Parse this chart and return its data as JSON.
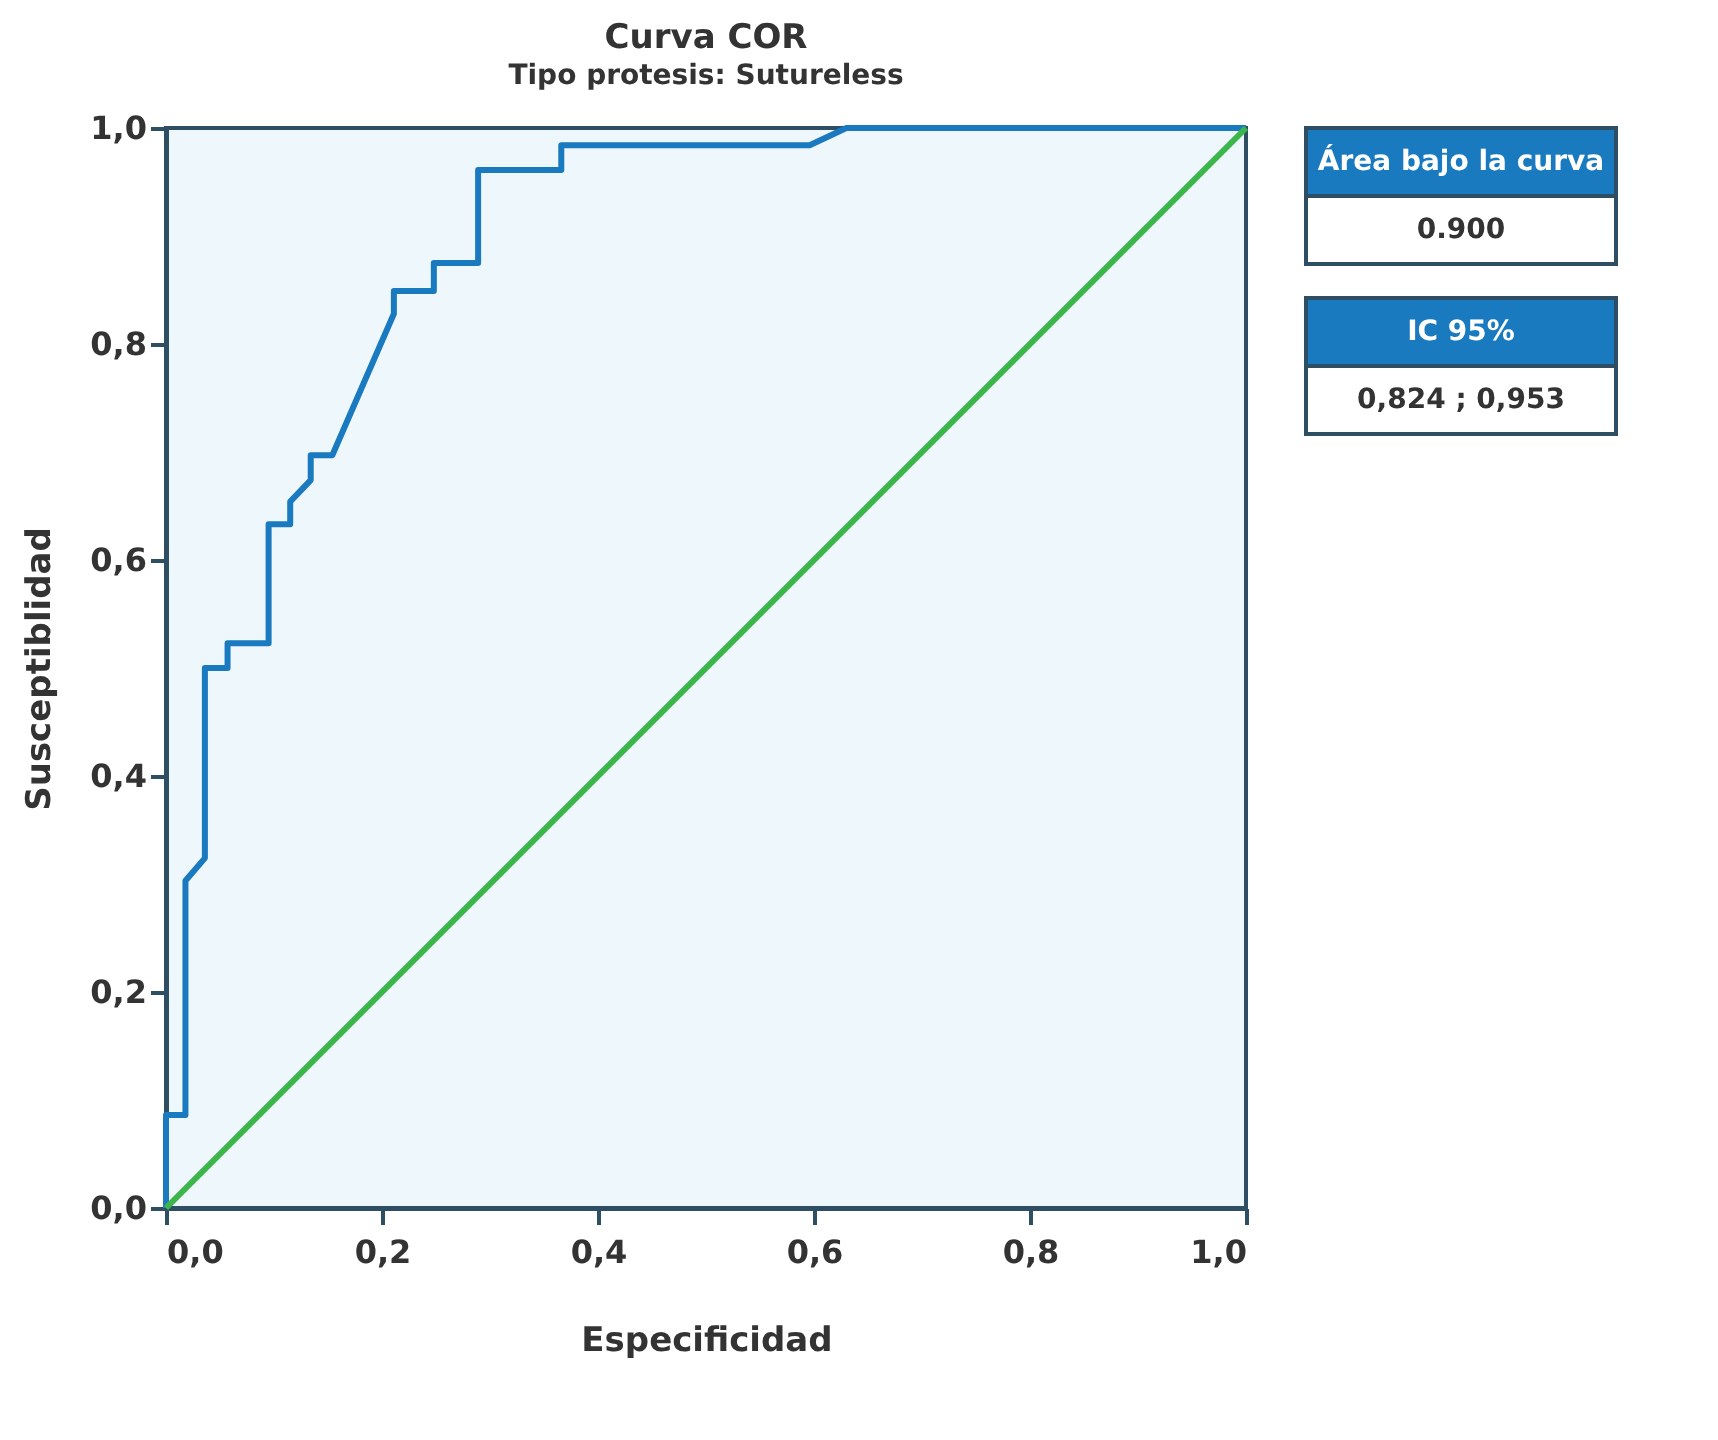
{
  "chart_data": {
    "type": "line",
    "title": "Curva COR",
    "subtitle": "Tipo protesis: Sutureless",
    "xlabel": "Especificidad",
    "ylabel": "Susceptiblidad",
    "xlim": [
      0,
      1
    ],
    "ylim": [
      0,
      1
    ],
    "xticks": [
      {
        "value": 0,
        "label": "0,0"
      },
      {
        "value": 0.2,
        "label": "0,2"
      },
      {
        "value": 0.4,
        "label": "0,4"
      },
      {
        "value": 0.6,
        "label": "0,6"
      },
      {
        "value": 0.8,
        "label": "0,8"
      },
      {
        "value": 1,
        "label": "1,0"
      }
    ],
    "yticks": [
      {
        "value": 0,
        "label": "0,0"
      },
      {
        "value": 0.2,
        "label": "0,2"
      },
      {
        "value": 0.4,
        "label": "0,4"
      },
      {
        "value": 0.6,
        "label": "0,6"
      },
      {
        "value": 0.8,
        "label": "0,8"
      },
      {
        "value": 1,
        "label": "1,0"
      }
    ],
    "grid": false,
    "marker": "none",
    "line_style": "solid",
    "series": [
      {
        "color": "#1a7abf",
        "x": [
          0,
          0,
          0.018,
          0.018,
          0.036,
          0.036,
          0.057,
          0.057,
          0.095,
          0.095,
          0.115,
          0.115,
          0.134,
          0.134,
          0.154,
          0.211,
          0.211,
          0.248,
          0.248,
          0.289,
          0.289,
          0.366,
          0.366,
          0.596,
          0.63,
          1
        ],
        "values": [
          0,
          0.086,
          0.086,
          0.303,
          0.324,
          0.5,
          0.5,
          0.523,
          0.523,
          0.633,
          0.633,
          0.654,
          0.674,
          0.697,
          0.697,
          0.828,
          0.849,
          0.849,
          0.875,
          0.875,
          0.961,
          0.961,
          0.984,
          0.984,
          1,
          1
        ]
      },
      {
        "color": "#3cb54a",
        "x": [
          0,
          1
        ],
        "values": [
          0,
          1
        ]
      }
    ],
    "annotations": [
      "Área bajo la curva",
      "0.900",
      "IC 95%",
      "0,824 ; 0,953"
    ]
  }
}
